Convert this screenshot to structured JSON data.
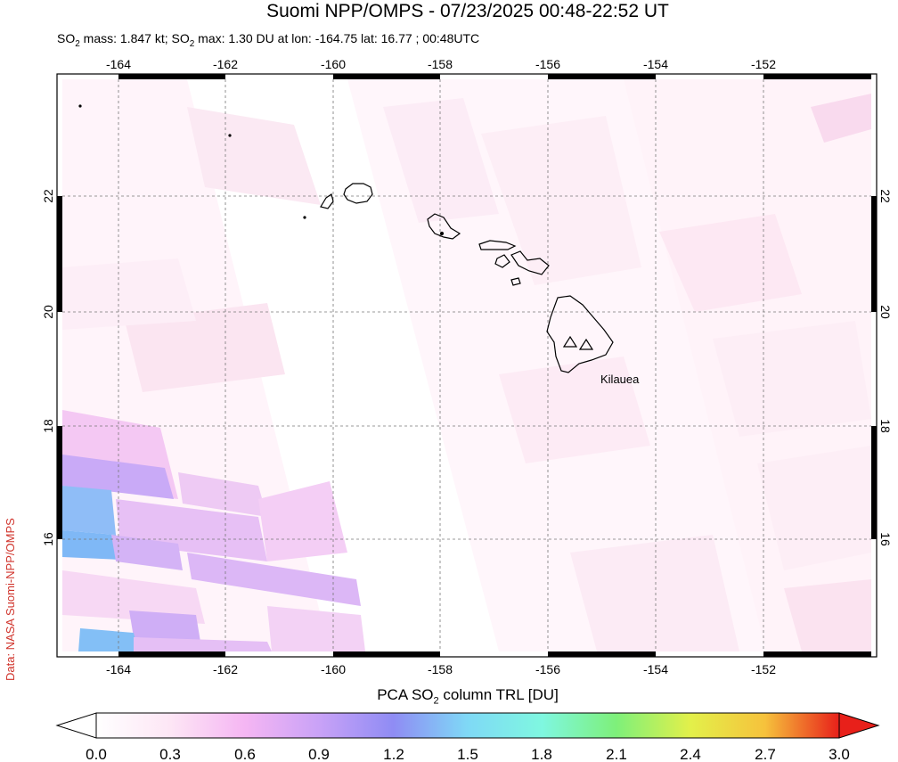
{
  "title": "Suomi NPP/OMPS - 07/23/2025 00:48-22:52 UT",
  "subtitle": {
    "mass_prefix": "SO",
    "mass_sub": "2",
    "mass_text": " mass: 1.847 kt; SO",
    "max_sub": "2",
    "max_text": " max: 1.30 DU at lon: -164.75 lat: 16.77 ; 00:48UTC"
  },
  "credit": "Data: NASA Suomi-NPP/OMPS",
  "map": {
    "lon_ticks": [
      "-164",
      "-162",
      "-160",
      "-158",
      "-156",
      "-154",
      "-152"
    ],
    "lat_ticks": [
      "22",
      "20",
      "18",
      "16"
    ],
    "volcano_label": "Kilauea",
    "volcano_icon": "triangle-marker-icon",
    "grid": "dashed"
  },
  "colorbar": {
    "title_prefix": "PCA SO",
    "title_sub": "2",
    "title_suffix": " column TRL [DU]",
    "ticks": [
      "0.0",
      "0.3",
      "0.6",
      "0.9",
      "1.2",
      "1.5",
      "1.8",
      "2.1",
      "2.4",
      "2.7",
      "3.0"
    ],
    "colors": [
      "#ffffff",
      "#fde6f5",
      "#f5b6f3",
      "#c9a2f7",
      "#8f8cf4",
      "#7fd9f6",
      "#7ff7e0",
      "#7ef07a",
      "#e3f04a",
      "#f6c23c",
      "#f06a2c",
      "#e8201a"
    ]
  }
}
